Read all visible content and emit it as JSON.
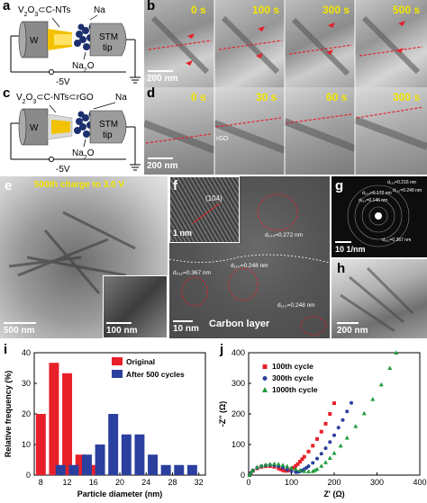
{
  "panels": {
    "a": {
      "label": "a",
      "title_pre": "V",
      "title_sub": "2",
      "title_mid": "O",
      "title_sub2": "3",
      "title_post": "⊂C-NTs",
      "na_label": "Na",
      "w_label": "W",
      "stm_label1": "STM",
      "stm_label2": "tip",
      "product_pre": "Na",
      "product_sub": "2",
      "product_post": "O",
      "voltage": "-5V"
    },
    "b": {
      "label": "b",
      "times": [
        "0 s",
        "100 s",
        "300 s",
        "500 s"
      ],
      "scale": "200 nm"
    },
    "c": {
      "label": "c",
      "title_pre": "V",
      "title_sub": "2",
      "title_mid": "O",
      "title_sub2": "3",
      "title_post": "⊂C-NTs⊂rGO",
      "na_label": "Na",
      "w_label": "W",
      "stm_label1": "STM",
      "stm_label2": "tip",
      "product_pre": "Na",
      "product_sub": "2",
      "product_post": "O",
      "voltage": "-5V"
    },
    "d": {
      "label": "d",
      "times": [
        "0 s",
        "30 s",
        "60 s",
        "300 s"
      ],
      "scale": "200 nm",
      "rgo_label": "rGO"
    },
    "e": {
      "label": "e",
      "caption": "500th charge to 3.0 V",
      "scale_main": "500 nm",
      "scale_inset": "100 nm"
    },
    "f": {
      "label": "f",
      "inset_plane": "(104)",
      "inset_scale": "1 nm",
      "d1": "d₁₀₄=0.272 nm",
      "d2": "d₁₁₀=0.248 nm",
      "d3": "d₀₁₂=0.367 nm",
      "d4": "d₁₁₀=0.248 nm",
      "carbon": "Carbon layer",
      "scale": "10 nm"
    },
    "g": {
      "label": "g",
      "scale": "10 1/nm",
      "spots": [
        "d₁₁₃=0.216 nm",
        "d₁₁₀=0.249 nm",
        "d₀₂₄=0.172 nm",
        "d₂₁₄=0.146 nm",
        "d₀₁₂=0.367 nm"
      ]
    },
    "h": {
      "label": "h",
      "scale": "200 nm"
    },
    "i": {
      "label": "i"
    },
    "j": {
      "label": "j"
    }
  },
  "chart_data": [
    {
      "type": "bar",
      "xlabel": "Particle diameter (nm)",
      "ylabel": "Relative frequency (%)",
      "xlim": [
        7,
        33
      ],
      "ylim": [
        0,
        40
      ],
      "xticks": [
        8,
        12,
        16,
        20,
        24,
        28,
        32
      ],
      "yticks": [
        0,
        10,
        20,
        30,
        40
      ],
      "legend_position": "top-right",
      "series": [
        {
          "name": "Original",
          "color": "#e8202a",
          "x": [
            8,
            10,
            12,
            14,
            16
          ],
          "values": [
            20,
            36.7,
            33.3,
            6.7,
            3.3
          ]
        },
        {
          "name": "After 500 cycles",
          "color": "#2b3f9e",
          "x": [
            11,
            13,
            15,
            17,
            19,
            21,
            23,
            25,
            27,
            29,
            31
          ],
          "values": [
            3.3,
            3.3,
            6.7,
            10,
            20,
            13.3,
            13.3,
            6.7,
            3.3,
            3.3,
            3.3
          ]
        }
      ]
    },
    {
      "type": "scatter",
      "xlabel": "Z' (Ω)",
      "ylabel": "-Z'' (Ω)",
      "xlim": [
        0,
        400
      ],
      "ylim": [
        0,
        400
      ],
      "xticks": [
        0,
        100,
        200,
        300,
        400
      ],
      "yticks": [
        0,
        100,
        200,
        300,
        400
      ],
      "legend_position": "top-left",
      "series": [
        {
          "name": "100th cycle",
          "color": "#e8202a",
          "marker": "square",
          "x": [
            2,
            5,
            10,
            20,
            30,
            40,
            50,
            60,
            70,
            75,
            80,
            85,
            90,
            95,
            100,
            105,
            110,
            115,
            120,
            125,
            130,
            140,
            150,
            160,
            170,
            180,
            190,
            200
          ],
          "y": [
            0,
            6,
            14,
            22,
            27,
            29,
            29,
            27,
            22,
            19,
            16,
            14,
            14,
            16,
            20,
            24,
            30,
            36,
            44,
            52,
            60,
            77,
            96,
            118,
            142,
            168,
            200,
            235
          ]
        },
        {
          "name": "300th cycle",
          "color": "#2b3f9e",
          "marker": "circle",
          "x": [
            2,
            5,
            10,
            20,
            30,
            40,
            50,
            60,
            70,
            80,
            90,
            100,
            110,
            115,
            120,
            125,
            130,
            135,
            140,
            150,
            160,
            170,
            180,
            190,
            200,
            210,
            220,
            230,
            240
          ],
          "y": [
            0,
            7,
            15,
            24,
            29,
            32,
            33,
            32,
            29,
            24,
            18,
            12,
            10,
            10,
            12,
            15,
            19,
            24,
            29,
            40,
            54,
            70,
            88,
            108,
            130,
            155,
            180,
            208,
            236
          ]
        },
        {
          "name": "1000th cycle",
          "color": "#1e9b3a",
          "marker": "triangle",
          "x": [
            2,
            5,
            10,
            20,
            30,
            40,
            50,
            60,
            70,
            80,
            90,
            100,
            110,
            120,
            130,
            140,
            150,
            155,
            160,
            170,
            180,
            190,
            200,
            215,
            230,
            250,
            270,
            290,
            310,
            330,
            345
          ],
          "y": [
            0,
            8,
            16,
            26,
            31,
            34,
            36,
            37,
            36,
            33,
            29,
            24,
            20,
            16,
            13,
            12,
            13,
            16,
            20,
            30,
            42,
            56,
            72,
            96,
            122,
            160,
            202,
            248,
            296,
            350,
            400
          ]
        }
      ]
    }
  ]
}
